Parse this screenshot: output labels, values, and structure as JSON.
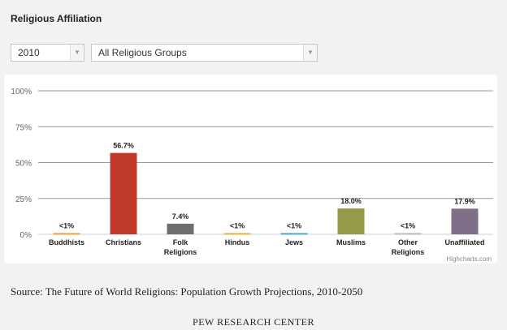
{
  "header": {
    "title": "Religious Affiliation"
  },
  "filters": {
    "year": "2010",
    "group": "All Religious Groups"
  },
  "chart_data": {
    "type": "bar",
    "categories": [
      "Buddhists",
      "Christians",
      "Folk Religions",
      "Hindus",
      "Jews",
      "Muslims",
      "Other Religions",
      "Unaffiliated"
    ],
    "values": [
      0.9,
      56.7,
      7.4,
      0.9,
      0.9,
      18.0,
      0.9,
      17.9
    ],
    "data_labels": [
      "<1%",
      "56.7%",
      "7.4%",
      "<1%",
      "<1%",
      "18.0%",
      "<1%",
      "17.9%"
    ],
    "colors": [
      "#f0a235",
      "#c0392b",
      "#6d6e70",
      "#e9b23c",
      "#4aa8d0",
      "#949a48",
      "#c6b9ad",
      "#7f6f89"
    ],
    "yticks": [
      0,
      25,
      50,
      75,
      100
    ],
    "ytick_labels": [
      "0%",
      "25%",
      "50%",
      "75%",
      "100%"
    ],
    "ylim": [
      0,
      100
    ],
    "credit": "Highcharts.com"
  },
  "footer": {
    "source": "Source: The Future of World Religions: Population Growth Projections, 2010-2050",
    "org": "PEW RESEARCH CENTER"
  }
}
